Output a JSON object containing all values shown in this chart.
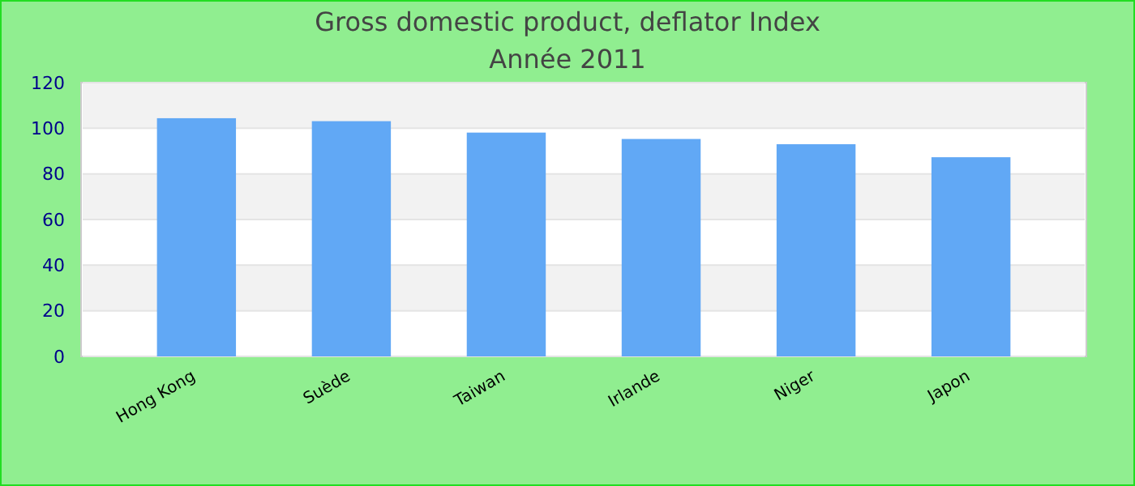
{
  "chart_data": {
    "type": "bar",
    "title": "Gross domestic product, deflator  Index",
    "subtitle": "Année 2011",
    "categories": [
      "Hong Kong",
      "Suède",
      "Taiwan",
      "Irlande",
      "Niger",
      "Japon"
    ],
    "values": [
      104.4,
      103.1,
      98.1,
      95.3,
      93.0,
      87.3
    ],
    "color": "#61a8f5",
    "ylim": [
      0,
      120
    ],
    "yticks": [
      0,
      20,
      40,
      60,
      80,
      100,
      120
    ],
    "grid": "y"
  }
}
